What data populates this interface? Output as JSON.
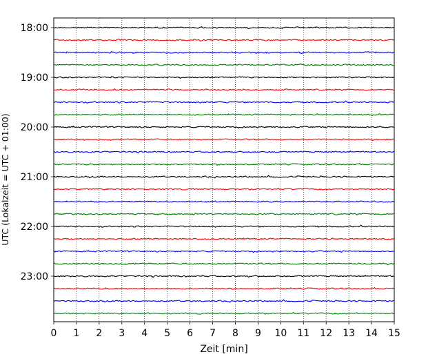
{
  "chart_data": {
    "type": "line",
    "xlabel": "Zeit  [min]",
    "ylabel": "UTC (Lokalzeit = UTC + 01:00)",
    "xlim": [
      0,
      15
    ],
    "x_ticks": [
      "0",
      "1",
      "2",
      "3",
      "4",
      "5",
      "6",
      "7",
      "8",
      "9",
      "10",
      "11",
      "12",
      "13",
      "14",
      "15"
    ],
    "y_tick_labels": [
      "18:00",
      "19:00",
      "20:00",
      "21:00",
      "22:00",
      "23:00"
    ],
    "trace_start_times": [
      "18:00",
      "18:15",
      "18:30",
      "18:45",
      "19:00",
      "19:15",
      "19:30",
      "19:45",
      "20:00",
      "20:15",
      "20:30",
      "20:45",
      "21:00",
      "21:15",
      "21:30",
      "21:45",
      "22:00",
      "22:15",
      "22:30",
      "22:45",
      "23:00",
      "23:15",
      "23:30",
      "23:45"
    ],
    "trace_colors": [
      "#000000",
      "#ff0000",
      "#0000ff",
      "#008000"
    ],
    "vertical_grid": "dotted",
    "series_description_note": ""
  }
}
